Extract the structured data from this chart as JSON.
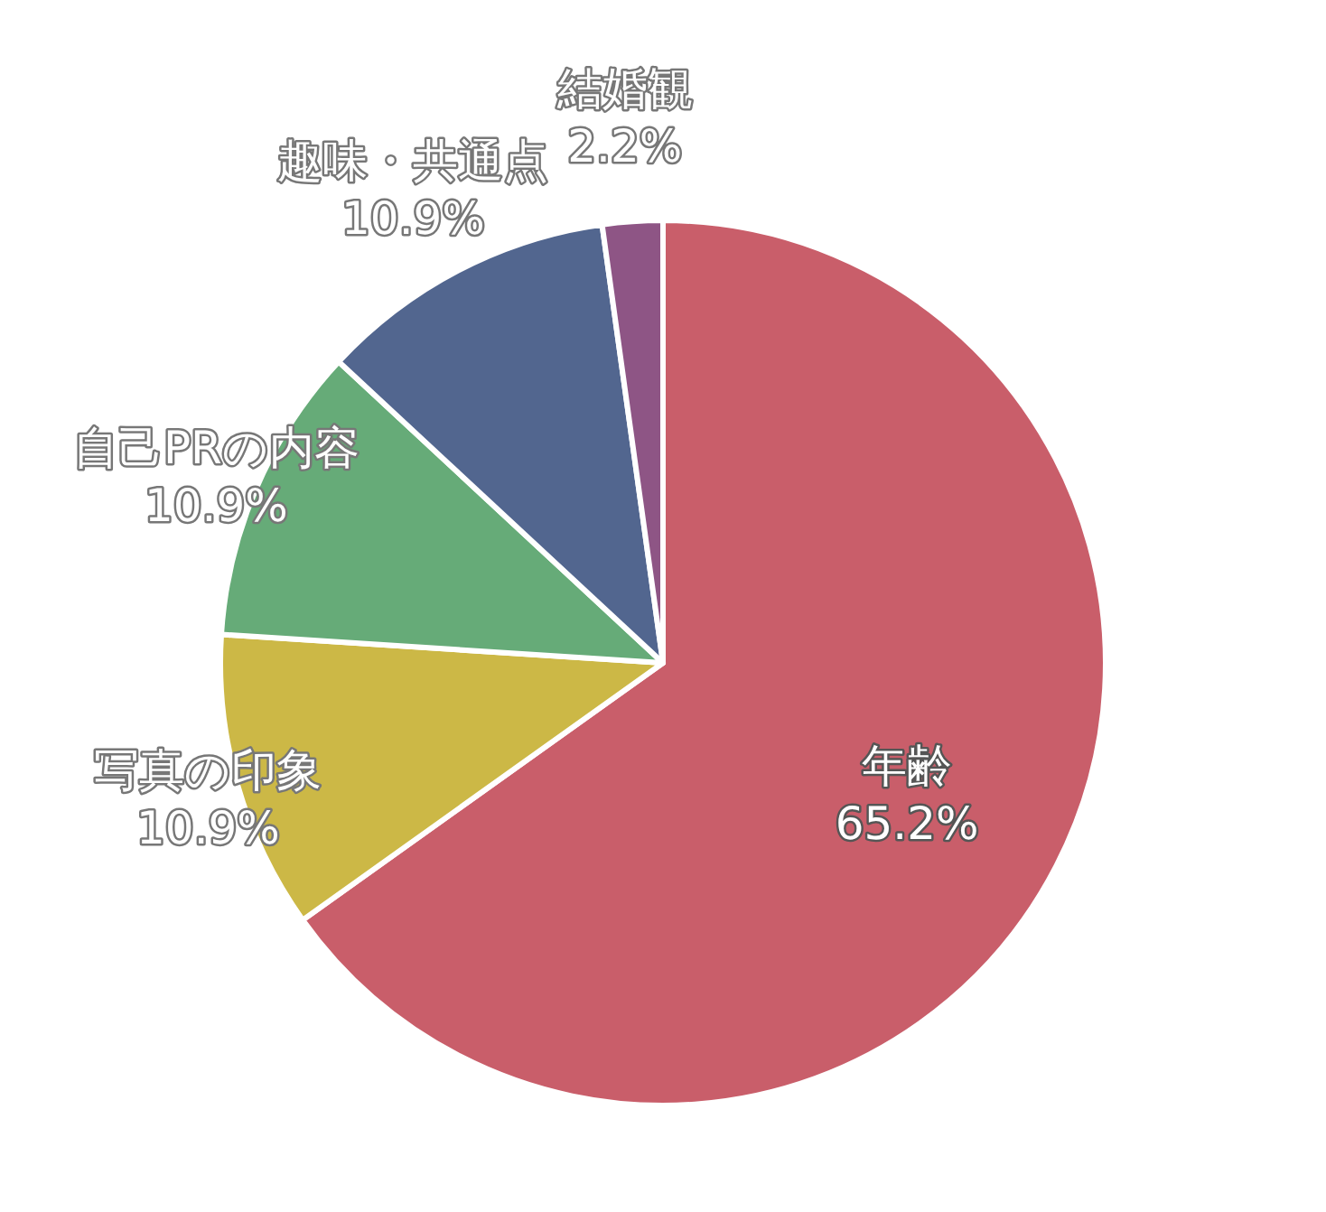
{
  "chart_data": {
    "type": "pie",
    "categories": [
      "年齢",
      "写真の印象",
      "自己PRの内容",
      "趣味・共通点",
      "結婚観"
    ],
    "values": [
      65.2,
      10.9,
      10.9,
      10.9,
      2.2
    ],
    "colors": [
      "#c95e6a",
      "#ccb846",
      "#66ab78",
      "#52668f",
      "#8e5585"
    ],
    "value_labels": [
      "65.2%",
      "10.9%",
      "10.9%",
      "10.9%",
      "2.2%"
    ]
  }
}
